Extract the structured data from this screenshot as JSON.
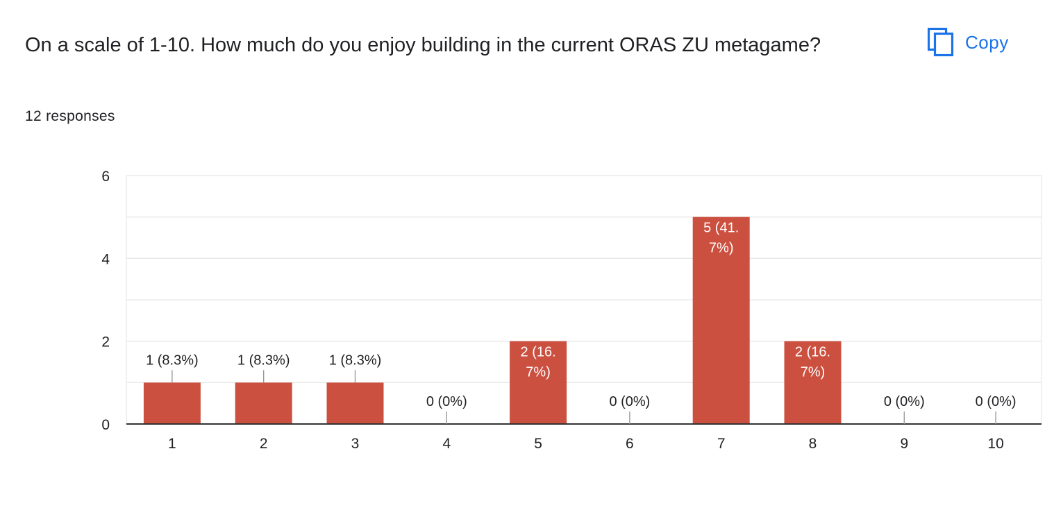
{
  "question": {
    "title": "On a scale of 1-10. How much do you enjoy building in the current ORAS ZU metagame?",
    "responses": "12 responses"
  },
  "copy_button": {
    "label": "Copy",
    "icon": "copy-icon"
  },
  "colors": {
    "bar": "#cc5040",
    "accent": "#1a73e8",
    "text": "#202124",
    "grid": "#e8e8e8",
    "axis": "#333333"
  },
  "chart_data": {
    "type": "bar",
    "categories": [
      "1",
      "2",
      "3",
      "4",
      "5",
      "6",
      "7",
      "8",
      "9",
      "10"
    ],
    "values": [
      1,
      1,
      1,
      0,
      2,
      0,
      5,
      2,
      0,
      0
    ],
    "labels": [
      [
        "1 (8.3%)"
      ],
      [
        "1 (8.3%)"
      ],
      [
        "1 (8.3%)"
      ],
      [
        "0 (0%)"
      ],
      [
        "2 (16.",
        "7%)"
      ],
      [
        "0 (0%)"
      ],
      [
        "5 (41.",
        "7%)"
      ],
      [
        "2 (16.",
        "7%)"
      ],
      [
        "0 (0%)"
      ],
      [
        "0 (0%)"
      ]
    ],
    "yticks": [
      "0",
      "2",
      "4",
      "6"
    ],
    "ylim": [
      0,
      6
    ],
    "minor_grid_step": 1,
    "grid": true,
    "legend": "none"
  }
}
